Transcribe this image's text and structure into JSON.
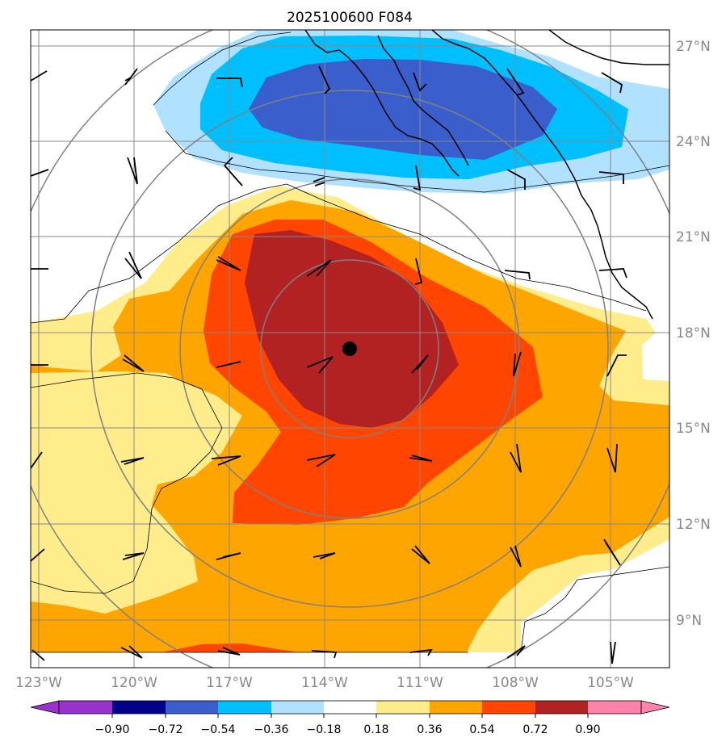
{
  "title": "2025100600 F084",
  "lon_labels": [
    "123°W",
    "120°W",
    "117°W",
    "114°W",
    "111°W",
    "108°W",
    "105°W"
  ],
  "lat_labels": [
    "27°N",
    "24°N",
    "21°N",
    "18°N",
    "15°N",
    "12°N",
    "9°N"
  ],
  "colorbar": {
    "ticks": [
      "−0.90",
      "−0.72",
      "−0.54",
      "−0.36",
      "−0.18",
      "0.18",
      "0.36",
      "0.54",
      "0.72",
      "0.90"
    ],
    "colors": [
      "#9932cc",
      "#00008b",
      "#3a5fcd",
      "#00bfff",
      "#b0e2ff",
      "#ffffff",
      "#ffec8b",
      "#ffa500",
      "#ff4500",
      "#b22222",
      "#ff82ab"
    ]
  },
  "colors": {
    "grid": "#888888",
    "range_rings": "#808080",
    "coast": "#000000",
    "center_marker": "#000000"
  }
}
